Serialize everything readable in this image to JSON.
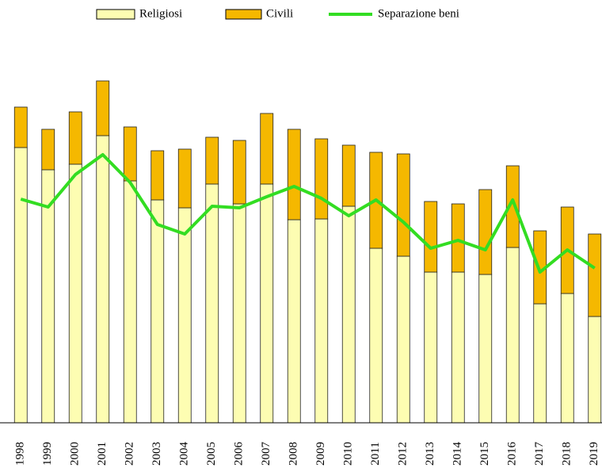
{
  "chart_data": {
    "type": "stacked_bar_line",
    "categories": [
      "1998",
      "1999",
      "2000",
      "2001",
      "2002",
      "2003",
      "2004",
      "2005",
      "2006",
      "2007",
      "2008",
      "2009",
      "2010",
      "2011",
      "2012",
      "2013",
      "2014",
      "2015",
      "2016",
      "2017",
      "2018",
      "2019"
    ],
    "series": [
      {
        "name": "Religiosi",
        "color": "#fdfdb2",
        "values": [
          347,
          319,
          326,
          362,
          305,
          281,
          271,
          301,
          276,
          301,
          256,
          257,
          273,
          220,
          210,
          190,
          190,
          187,
          221,
          150,
          163,
          134
        ]
      },
      {
        "name": "Civili",
        "color": "#f5b800",
        "values": [
          51,
          51,
          66,
          69,
          68,
          62,
          74,
          59,
          80,
          89,
          114,
          101,
          77,
          121,
          129,
          89,
          86,
          107,
          103,
          92,
          109,
          104
        ]
      },
      {
        "name": "Separazione beni",
        "color": "#33dd22",
        "type": "line",
        "values": [
          282,
          272,
          313,
          338,
          303,
          250,
          238,
          273,
          271,
          285,
          298,
          283,
          261,
          281,
          253,
          220,
          230,
          218,
          281,
          190,
          218,
          195
        ]
      }
    ],
    "ylim": [
      0,
      450
    ]
  }
}
